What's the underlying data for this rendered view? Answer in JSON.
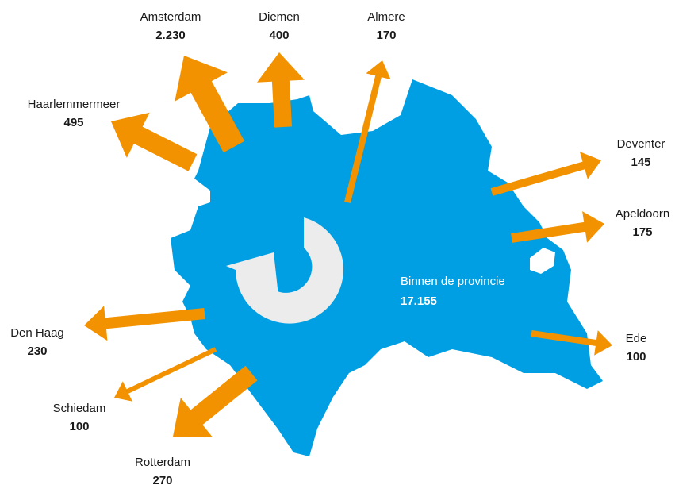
{
  "center": {
    "label": "Binnen de provincie",
    "value": "17.155"
  },
  "flows": [
    {
      "name": "Amsterdam",
      "value": "2.230"
    },
    {
      "name": "Diemen",
      "value": "400"
    },
    {
      "name": "Almere",
      "value": "170"
    },
    {
      "name": "Haarlemmermeer",
      "value": "495"
    },
    {
      "name": "Deventer",
      "value": "145"
    },
    {
      "name": "Apeldoorn",
      "value": "175"
    },
    {
      "name": "Ede",
      "value": "100"
    },
    {
      "name": "Den Haag",
      "value": "230"
    },
    {
      "name": "Schiedam",
      "value": "100"
    },
    {
      "name": "Rotterdam",
      "value": "270"
    }
  ]
}
